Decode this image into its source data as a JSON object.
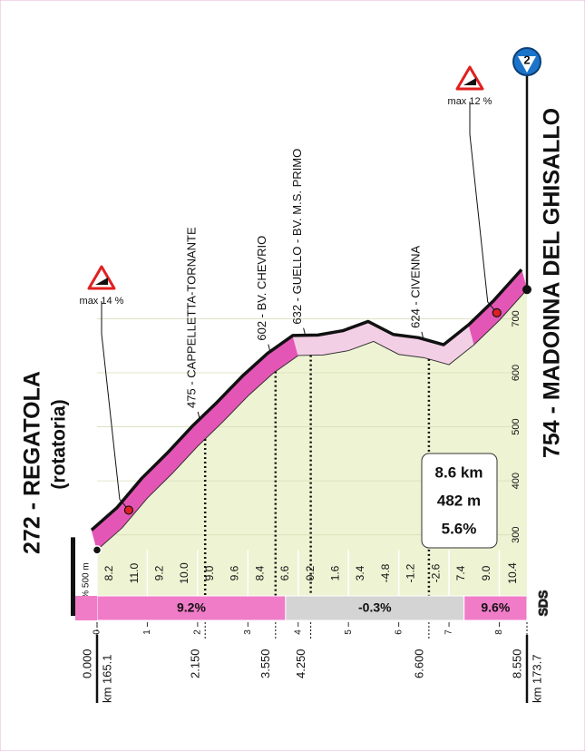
{
  "chart_data": {
    "type": "climb-profile",
    "start_label": "272 - REGATOLA",
    "start_note": "(rotatoria)",
    "finish_label": "754 - MADONNA DEL GHISALLO",
    "start_km": "km 165.1",
    "finish_km": "km 173.7",
    "badge": "2",
    "x": [
      0,
      0.5,
      1,
      1.5,
      2,
      2.5,
      3,
      3.5,
      4,
      4.5,
      5,
      5.5,
      6,
      6.5,
      7,
      7.5,
      8,
      8.55
    ],
    "altitude": [
      272,
      313,
      368,
      414,
      464,
      509,
      557,
      599,
      632,
      633,
      641,
      658,
      634,
      628,
      615,
      652,
      697,
      754
    ],
    "xlim": [
      0,
      8.55
    ],
    "ylim": [
      187,
      1290
    ],
    "xticks": [
      0,
      1,
      2,
      3,
      4,
      5,
      6,
      7,
      8
    ],
    "yticks": [
      300,
      400,
      500,
      600,
      700
    ],
    "distance_marks": [
      {
        "value": 0,
        "label": "0.000"
      },
      {
        "value": 2.15,
        "label": "2.150"
      },
      {
        "value": 3.55,
        "label": "3.550"
      },
      {
        "value": 4.25,
        "label": "4.250"
      },
      {
        "value": 6.6,
        "label": "6.600"
      },
      {
        "value": 8.55,
        "label": "8.550"
      }
    ],
    "waypoints": [
      {
        "km": 2.15,
        "label": "475 - CAPPELLETTA-TORNANTE"
      },
      {
        "km": 3.55,
        "label": "602 - BV. CHEVRIO"
      },
      {
        "km": 4.25,
        "label": "632 - GUELLO - BV. M.S. PRIMO"
      },
      {
        "km": 6.6,
        "label": "624 - CIVENNA"
      }
    ],
    "gradient_unit": "% 500 m",
    "gradients": {
      "values": [
        8.2,
        11,
        9.2,
        10,
        9,
        9.6,
        8.4,
        6.6,
        0.2,
        1.6,
        3.4,
        -4.8,
        -1.2,
        -2.6,
        7.4,
        9,
        10.4
      ],
      "value_labels": [
        "8.2",
        "11.0",
        "9.2",
        "10.0",
        "9.0",
        "9.6",
        "8.4",
        "6.6",
        "0.2",
        "1.6",
        "3.4",
        "-4.8",
        "-1.2",
        "-2.6",
        "7.4",
        "9.0",
        "10.4"
      ]
    },
    "sections": [
      {
        "from": 0,
        "to": 3.75,
        "value": 9.2,
        "label": "9.2%",
        "color": "#f07cc8"
      },
      {
        "from": 3.75,
        "to": 7.3,
        "value": -0.3,
        "label": "-0.3%",
        "color": "#d4d4d4"
      },
      {
        "from": 7.3,
        "to": 8.55,
        "value": 9.6,
        "label": "9.6%",
        "color": "#f07cc8"
      }
    ],
    "max_gradients": [
      {
        "km": 0.63,
        "label": "max 14 %"
      },
      {
        "km": 7.95,
        "label": "max 12 %"
      }
    ],
    "summary": [
      "8.6 km",
      "482 m",
      "5.6%"
    ],
    "credit": "SDS"
  }
}
